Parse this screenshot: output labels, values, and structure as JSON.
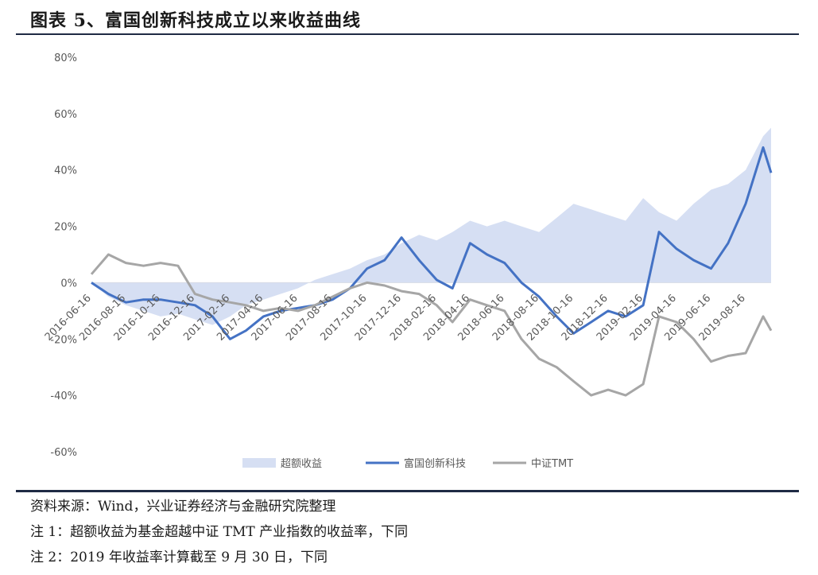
{
  "title": "图表 5、富国创新科技成立以来收益曲线",
  "notes": {
    "source": "资料来源：Wind，兴业证券经济与金融研究院整理",
    "note1": "注 1：超额收益为基金超越中证 TMT 产业指数的收益率，下同",
    "note2": "注 2：2019 年收益率计算截至 9 月 30 日，下同"
  },
  "chart_data": {
    "type": "line",
    "title": "",
    "xlabel": "",
    "ylabel": "",
    "ylim": [
      -60,
      80
    ],
    "yticks": [
      "80%",
      "60%",
      "40%",
      "20%",
      "0%",
      "-20%",
      "-40%",
      "-60%"
    ],
    "ytick_values": [
      80,
      60,
      40,
      20,
      0,
      -20,
      -40,
      -60
    ],
    "xticks": [
      "2016-06-16",
      "2016-08-16",
      "2016-10-16",
      "2016-12-16",
      "2017-02-16",
      "2017-04-16",
      "2017-06-16",
      "2017-08-16",
      "2017-10-16",
      "2017-12-16",
      "2018-02-16",
      "2018-04-16",
      "2018-06-16",
      "2018-08-16",
      "2018-10-16",
      "2018-12-16",
      "2019-02-16",
      "2019-04-16",
      "2019-06-16",
      "2019-08-16"
    ],
    "x": [
      "2016-06-16",
      "2016-07-16",
      "2016-08-16",
      "2016-09-16",
      "2016-10-16",
      "2016-11-16",
      "2016-12-16",
      "2017-01-16",
      "2017-02-16",
      "2017-03-16",
      "2017-04-16",
      "2017-05-16",
      "2017-06-16",
      "2017-07-16",
      "2017-08-16",
      "2017-09-16",
      "2017-10-16",
      "2017-11-16",
      "2017-12-16",
      "2018-01-16",
      "2018-02-16",
      "2018-03-16",
      "2018-04-16",
      "2018-05-16",
      "2018-06-16",
      "2018-07-16",
      "2018-08-16",
      "2018-09-16",
      "2018-10-16",
      "2018-11-16",
      "2018-12-16",
      "2019-01-16",
      "2019-02-16",
      "2019-03-16",
      "2019-04-16",
      "2019-05-16",
      "2019-06-16",
      "2019-07-16",
      "2019-08-16",
      "2019-09-16",
      "2019-09-30"
    ],
    "legend_position": "bottom",
    "grid": false,
    "series": [
      {
        "name": "超额收益",
        "kind": "area",
        "color": "#d6dff3",
        "values": [
          0,
          -5,
          -8,
          -10,
          -12,
          -11,
          -13,
          -15,
          -12,
          -8,
          -6,
          -4,
          -2,
          1,
          3,
          5,
          8,
          10,
          14,
          17,
          15,
          18,
          22,
          20,
          22,
          20,
          18,
          23,
          28,
          26,
          24,
          22,
          30,
          25,
          22,
          28,
          33,
          35,
          40,
          52,
          55
        ]
      },
      {
        "name": "富国创新科技",
        "kind": "line",
        "color": "#4472c4",
        "values": [
          0,
          -4,
          -7,
          -6,
          -6,
          -7,
          -8,
          -12,
          -20,
          -17,
          -12,
          -10,
          -9,
          -8,
          -6,
          -2,
          5,
          8,
          16,
          8,
          1,
          -2,
          14,
          10,
          7,
          0,
          -5,
          -12,
          -18,
          -14,
          -10,
          -12,
          -8,
          18,
          12,
          8,
          5,
          14,
          28,
          48,
          39
        ]
      },
      {
        "name": "中证TMT",
        "kind": "line",
        "color": "#a6a6a6",
        "values": [
          3,
          10,
          7,
          6,
          7,
          6,
          -4,
          -6,
          -7,
          -8,
          -10,
          -9,
          -10,
          -8,
          -5,
          -2,
          0,
          -1,
          -3,
          -4,
          -8,
          -14,
          -6,
          -8,
          -10,
          -20,
          -27,
          -30,
          -35,
          -40,
          -38,
          -40,
          -36,
          -12,
          -14,
          -20,
          -28,
          -26,
          -25,
          -12,
          -17
        ]
      }
    ]
  }
}
